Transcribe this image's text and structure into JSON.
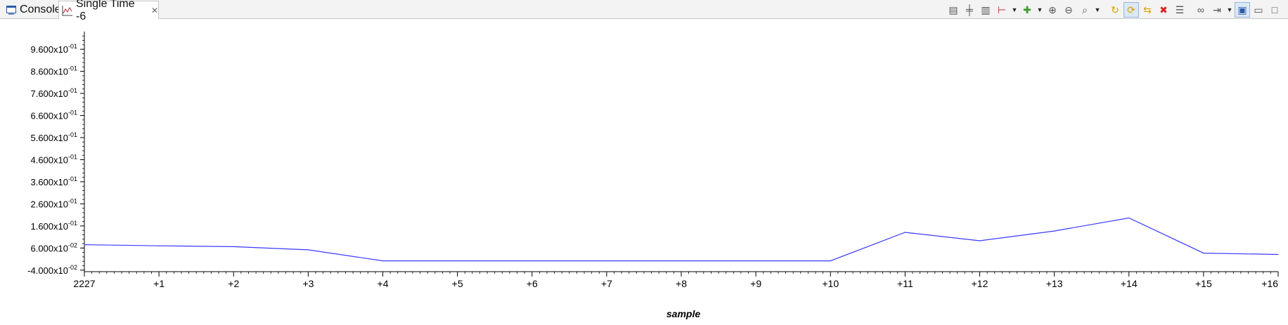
{
  "tabs": [
    {
      "label": "Console",
      "icon": "console-icon"
    },
    {
      "label": "Single Time -6",
      "icon": "graph-icon",
      "active": true
    }
  ],
  "toolbar": {
    "buttons": [
      "align-left-icon",
      "align-center-icon",
      "align-right-icon",
      "marker-icon",
      "dropdown-arrow",
      "add-measure-icon",
      "dropdown-arrow",
      "zoom-in-icon",
      "zoom-out-icon",
      "zoom-fit-icon",
      "dropdown-arrow",
      "refresh-icon",
      "continuous-refresh-icon",
      "sync-icon",
      "remove-icon",
      "properties-icon",
      "binoculars-icon",
      "step-icon",
      "dropdown-arrow",
      "layout-icon",
      "minimize-icon",
      "maximize-icon"
    ]
  },
  "chart_data": {
    "type": "line",
    "xlabel": "sample",
    "ylabel": "",
    "x_ticks": [
      "2227",
      "+1",
      "+2",
      "+3",
      "+4",
      "+5",
      "+6",
      "+7",
      "+8",
      "+9",
      "+10",
      "+11",
      "+12",
      "+13",
      "+14",
      "+15",
      "+16"
    ],
    "y_ticks": [
      {
        "v": 0.96,
        "label": "9.600x10",
        "exp": "-01"
      },
      {
        "v": 0.86,
        "label": "8.600x10",
        "exp": "-01"
      },
      {
        "v": 0.76,
        "label": "7.600x10",
        "exp": "-01"
      },
      {
        "v": 0.66,
        "label": "6.600x10",
        "exp": "-01"
      },
      {
        "v": 0.56,
        "label": "5.600x10",
        "exp": "-01"
      },
      {
        "v": 0.46,
        "label": "4.600x10",
        "exp": "-01"
      },
      {
        "v": 0.36,
        "label": "3.600x10",
        "exp": "-01"
      },
      {
        "v": 0.26,
        "label": "2.600x10",
        "exp": "-01"
      },
      {
        "v": 0.16,
        "label": "1.600x10",
        "exp": "-01"
      },
      {
        "v": 0.06,
        "label": "6.000x10",
        "exp": "-02"
      },
      {
        "v": -0.04,
        "label": "-4.000x10",
        "exp": "-02"
      }
    ],
    "ylim": [
      -0.047,
      1.04
    ],
    "series": [
      {
        "x": [
          0,
          1,
          2,
          3,
          4,
          5,
          6,
          7,
          8,
          9,
          10,
          11,
          12,
          13,
          14,
          15,
          16
        ],
        "values": [
          0.075,
          0.07,
          0.066,
          0.052,
          0.002,
          0.002,
          0.002,
          0.002,
          0.002,
          0.002,
          0.002,
          0.131,
          0.093,
          0.137,
          0.196,
          0.037,
          0.031
        ],
        "color": "#3a3aff"
      }
    ],
    "grid": false
  }
}
